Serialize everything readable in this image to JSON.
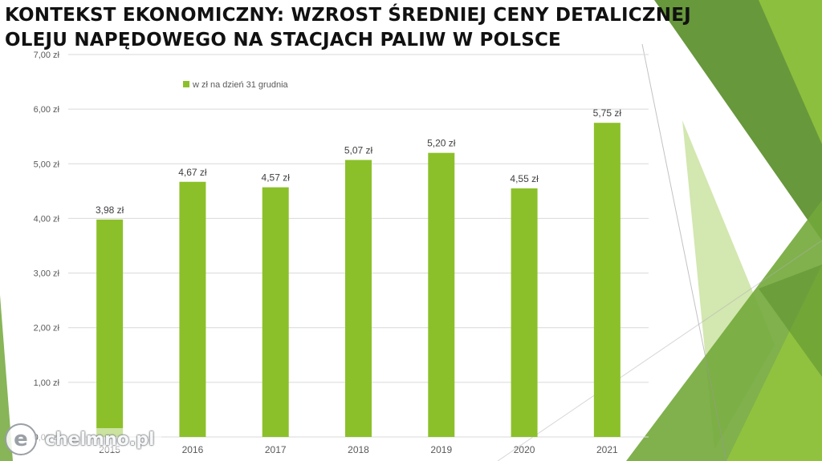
{
  "title_lines": [
    "KONTEKST EKONOMICZNY: WZROST ŚREDNIEJ CENY DETALICZNEJ",
    "OLEJU NAPĘDOWEGO NA STACJACH PALIW W POLSCE"
  ],
  "watermark": {
    "letter": "e",
    "text": "chelmno.pl"
  },
  "colors": {
    "bar": "#8cc02a",
    "grid": "#d9d9d9",
    "axis_text": "#595959",
    "deco_dark": "#5f9232",
    "deco_mid": "#72a83a",
    "deco_light": "#c4df95",
    "deco_bright": "#93c53d"
  },
  "chart_data": {
    "type": "bar",
    "categories": [
      "2015",
      "2016",
      "2017",
      "2018",
      "2019",
      "2020",
      "2021"
    ],
    "series": [
      {
        "name": "w zł na dzień 31 grudnia",
        "values": [
          3.98,
          4.67,
          4.57,
          5.07,
          5.2,
          4.55,
          5.75
        ],
        "data_labels": [
          "3,98 zł",
          "4,67 zł",
          "4,57 zł",
          "5,07 zł",
          "5,20 zł",
          "4,55 zł",
          "5,75 zł"
        ]
      }
    ],
    "ylim": [
      0,
      7
    ],
    "yticks": [
      0,
      1,
      2,
      3,
      4,
      5,
      6,
      7
    ],
    "ytick_labels": [
      "0,00 zł",
      "1,00 zł",
      "2,00 zł",
      "3,00 zł",
      "4,00 zł",
      "5,00 zł",
      "6,00 zł",
      "7,00 zł"
    ],
    "grid": true,
    "legend_position": "top-left"
  }
}
